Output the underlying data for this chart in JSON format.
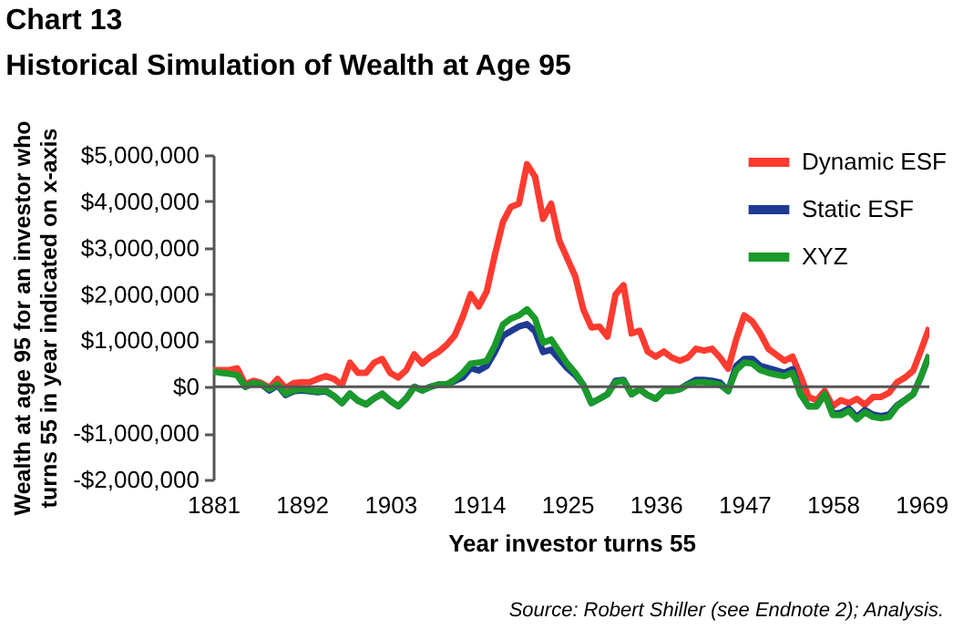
{
  "chart_data": {
    "type": "line",
    "title": "Chart 13",
    "subtitle": "Historical Simulation of Wealth at Age 95",
    "xlabel": "Year investor turns 55",
    "ylabel": "Wealth at age 95 for an investor who turns 55 in year indicated on x-axis",
    "annotations": [
      "Source: Robert Shiller (see Endnote 2); Analysis."
    ],
    "x": [
      1881,
      1882,
      1883,
      1884,
      1885,
      1886,
      1887,
      1888,
      1889,
      1890,
      1891,
      1892,
      1893,
      1894,
      1895,
      1896,
      1897,
      1898,
      1899,
      1900,
      1901,
      1902,
      1903,
      1904,
      1905,
      1906,
      1907,
      1908,
      1909,
      1910,
      1911,
      1912,
      1913,
      1914,
      1915,
      1916,
      1917,
      1918,
      1919,
      1920,
      1921,
      1922,
      1923,
      1924,
      1925,
      1926,
      1927,
      1928,
      1929,
      1930,
      1931,
      1932,
      1933,
      1934,
      1935,
      1936,
      1937,
      1938,
      1939,
      1940,
      1941,
      1942,
      1943,
      1944,
      1945,
      1946,
      1947,
      1948,
      1949,
      1950,
      1951,
      1952,
      1953,
      1954,
      1955,
      1956,
      1957,
      1958,
      1959,
      1960,
      1961,
      1962,
      1963,
      1964,
      1965,
      1966,
      1967,
      1968,
      1969,
      1970
    ],
    "series": [
      {
        "name": "Dynamic ESF",
        "color": "#ff3b30",
        "values": [
          360000,
          360000,
          360000,
          400000,
          50000,
          130000,
          80000,
          -20000,
          170000,
          -30000,
          80000,
          100000,
          100000,
          170000,
          230000,
          170000,
          40000,
          520000,
          300000,
          300000,
          520000,
          600000,
          300000,
          200000,
          360000,
          700000,
          500000,
          650000,
          750000,
          900000,
          1100000,
          1500000,
          2000000,
          1730000,
          2060000,
          2840000,
          3550000,
          3880000,
          3950000,
          4800000,
          4530000,
          3620000,
          3950000,
          3160000,
          2770000,
          2380000,
          1670000,
          1280000,
          1300000,
          1080000,
          1990000,
          2190000,
          1150000,
          1210000,
          760000,
          650000,
          760000,
          630000,
          560000,
          630000,
          820000,
          780000,
          820000,
          630000,
          390000,
          1020000,
          1540000,
          1410000,
          1150000,
          820000,
          690000,
          560000,
          650000,
          230000,
          -220000,
          -290000,
          -90000,
          -420000,
          -290000,
          -350000,
          -260000,
          -390000,
          -220000,
          -220000,
          -130000,
          100000,
          200000,
          350000,
          800000,
          1280000
        ]
      },
      {
        "name": "Static ESF",
        "color": "#1f3a93",
        "values": [
          null,
          null,
          null,
          250000,
          0,
          80000,
          50000,
          -80000,
          30000,
          -180000,
          -100000,
          -80000,
          -100000,
          -120000,
          -100000,
          -200000,
          -350000,
          -150000,
          -300000,
          -380000,
          -250000,
          -150000,
          -300000,
          -420000,
          -250000,
          0,
          -80000,
          0,
          50000,
          50000,
          120000,
          200000,
          400000,
          350000,
          450000,
          750000,
          1100000,
          1200000,
          1300000,
          1350000,
          1200000,
          750000,
          800000,
          600000,
          400000,
          250000,
          40000,
          -350000,
          -260000,
          -160000,
          130000,
          150000,
          -160000,
          -50000,
          -180000,
          -260000,
          -90000,
          -90000,
          -50000,
          60000,
          150000,
          150000,
          130000,
          90000,
          -90000,
          450000,
          600000,
          600000,
          450000,
          400000,
          350000,
          300000,
          380000,
          -160000,
          -420000,
          -420000,
          -160000,
          -580000,
          -560000,
          -470000,
          -650000,
          -500000,
          -600000,
          -630000,
          -600000,
          -400000,
          -280000,
          -160000,
          230000,
          690000
        ]
      },
      {
        "name": "XYZ",
        "color": "#1a9a2a",
        "values": [
          330000,
          300000,
          280000,
          250000,
          0,
          80000,
          50000,
          -50000,
          50000,
          -150000,
          -80000,
          -50000,
          -80000,
          -100000,
          -80000,
          -200000,
          -350000,
          -150000,
          -300000,
          -380000,
          -250000,
          -150000,
          -300000,
          -420000,
          -250000,
          0,
          -80000,
          0,
          50000,
          50000,
          150000,
          300000,
          500000,
          520000,
          560000,
          890000,
          1340000,
          1470000,
          1540000,
          1670000,
          1470000,
          950000,
          1020000,
          760000,
          500000,
          300000,
          40000,
          -350000,
          -260000,
          -160000,
          100000,
          130000,
          -160000,
          -50000,
          -180000,
          -260000,
          -90000,
          -90000,
          -50000,
          40000,
          100000,
          100000,
          80000,
          40000,
          -90000,
          360000,
          520000,
          500000,
          360000,
          300000,
          260000,
          230000,
          300000,
          -160000,
          -420000,
          -420000,
          -160000,
          -610000,
          -610000,
          -520000,
          -700000,
          -550000,
          -650000,
          -680000,
          -650000,
          -420000,
          -290000,
          -160000,
          230000,
          690000
        ]
      }
    ],
    "xlim": [
      1881,
      1970
    ],
    "xticks": [
      1881,
      1892,
      1903,
      1914,
      1925,
      1936,
      1947,
      1958,
      1969
    ],
    "ylim": [
      -2000000,
      5000000
    ],
    "yticks": [
      {
        "value": -2000000,
        "label": "-$2,000,000"
      },
      {
        "value": -1000000,
        "label": "-$1,000,000"
      },
      {
        "value": 0,
        "label": "$0"
      },
      {
        "value": 1000000,
        "label": "$1,000,000"
      },
      {
        "value": 2000000,
        "label": "$2,000,000"
      },
      {
        "value": 3000000,
        "label": "$3,000,000"
      },
      {
        "value": 4000000,
        "label": "$4,000,000"
      },
      {
        "value": 5000000,
        "label": "$5,000,000"
      }
    ],
    "ref_lines": [
      {
        "axis": "y",
        "value": 0,
        "color": "#555555"
      }
    ],
    "grid": false,
    "legend": "top right"
  }
}
